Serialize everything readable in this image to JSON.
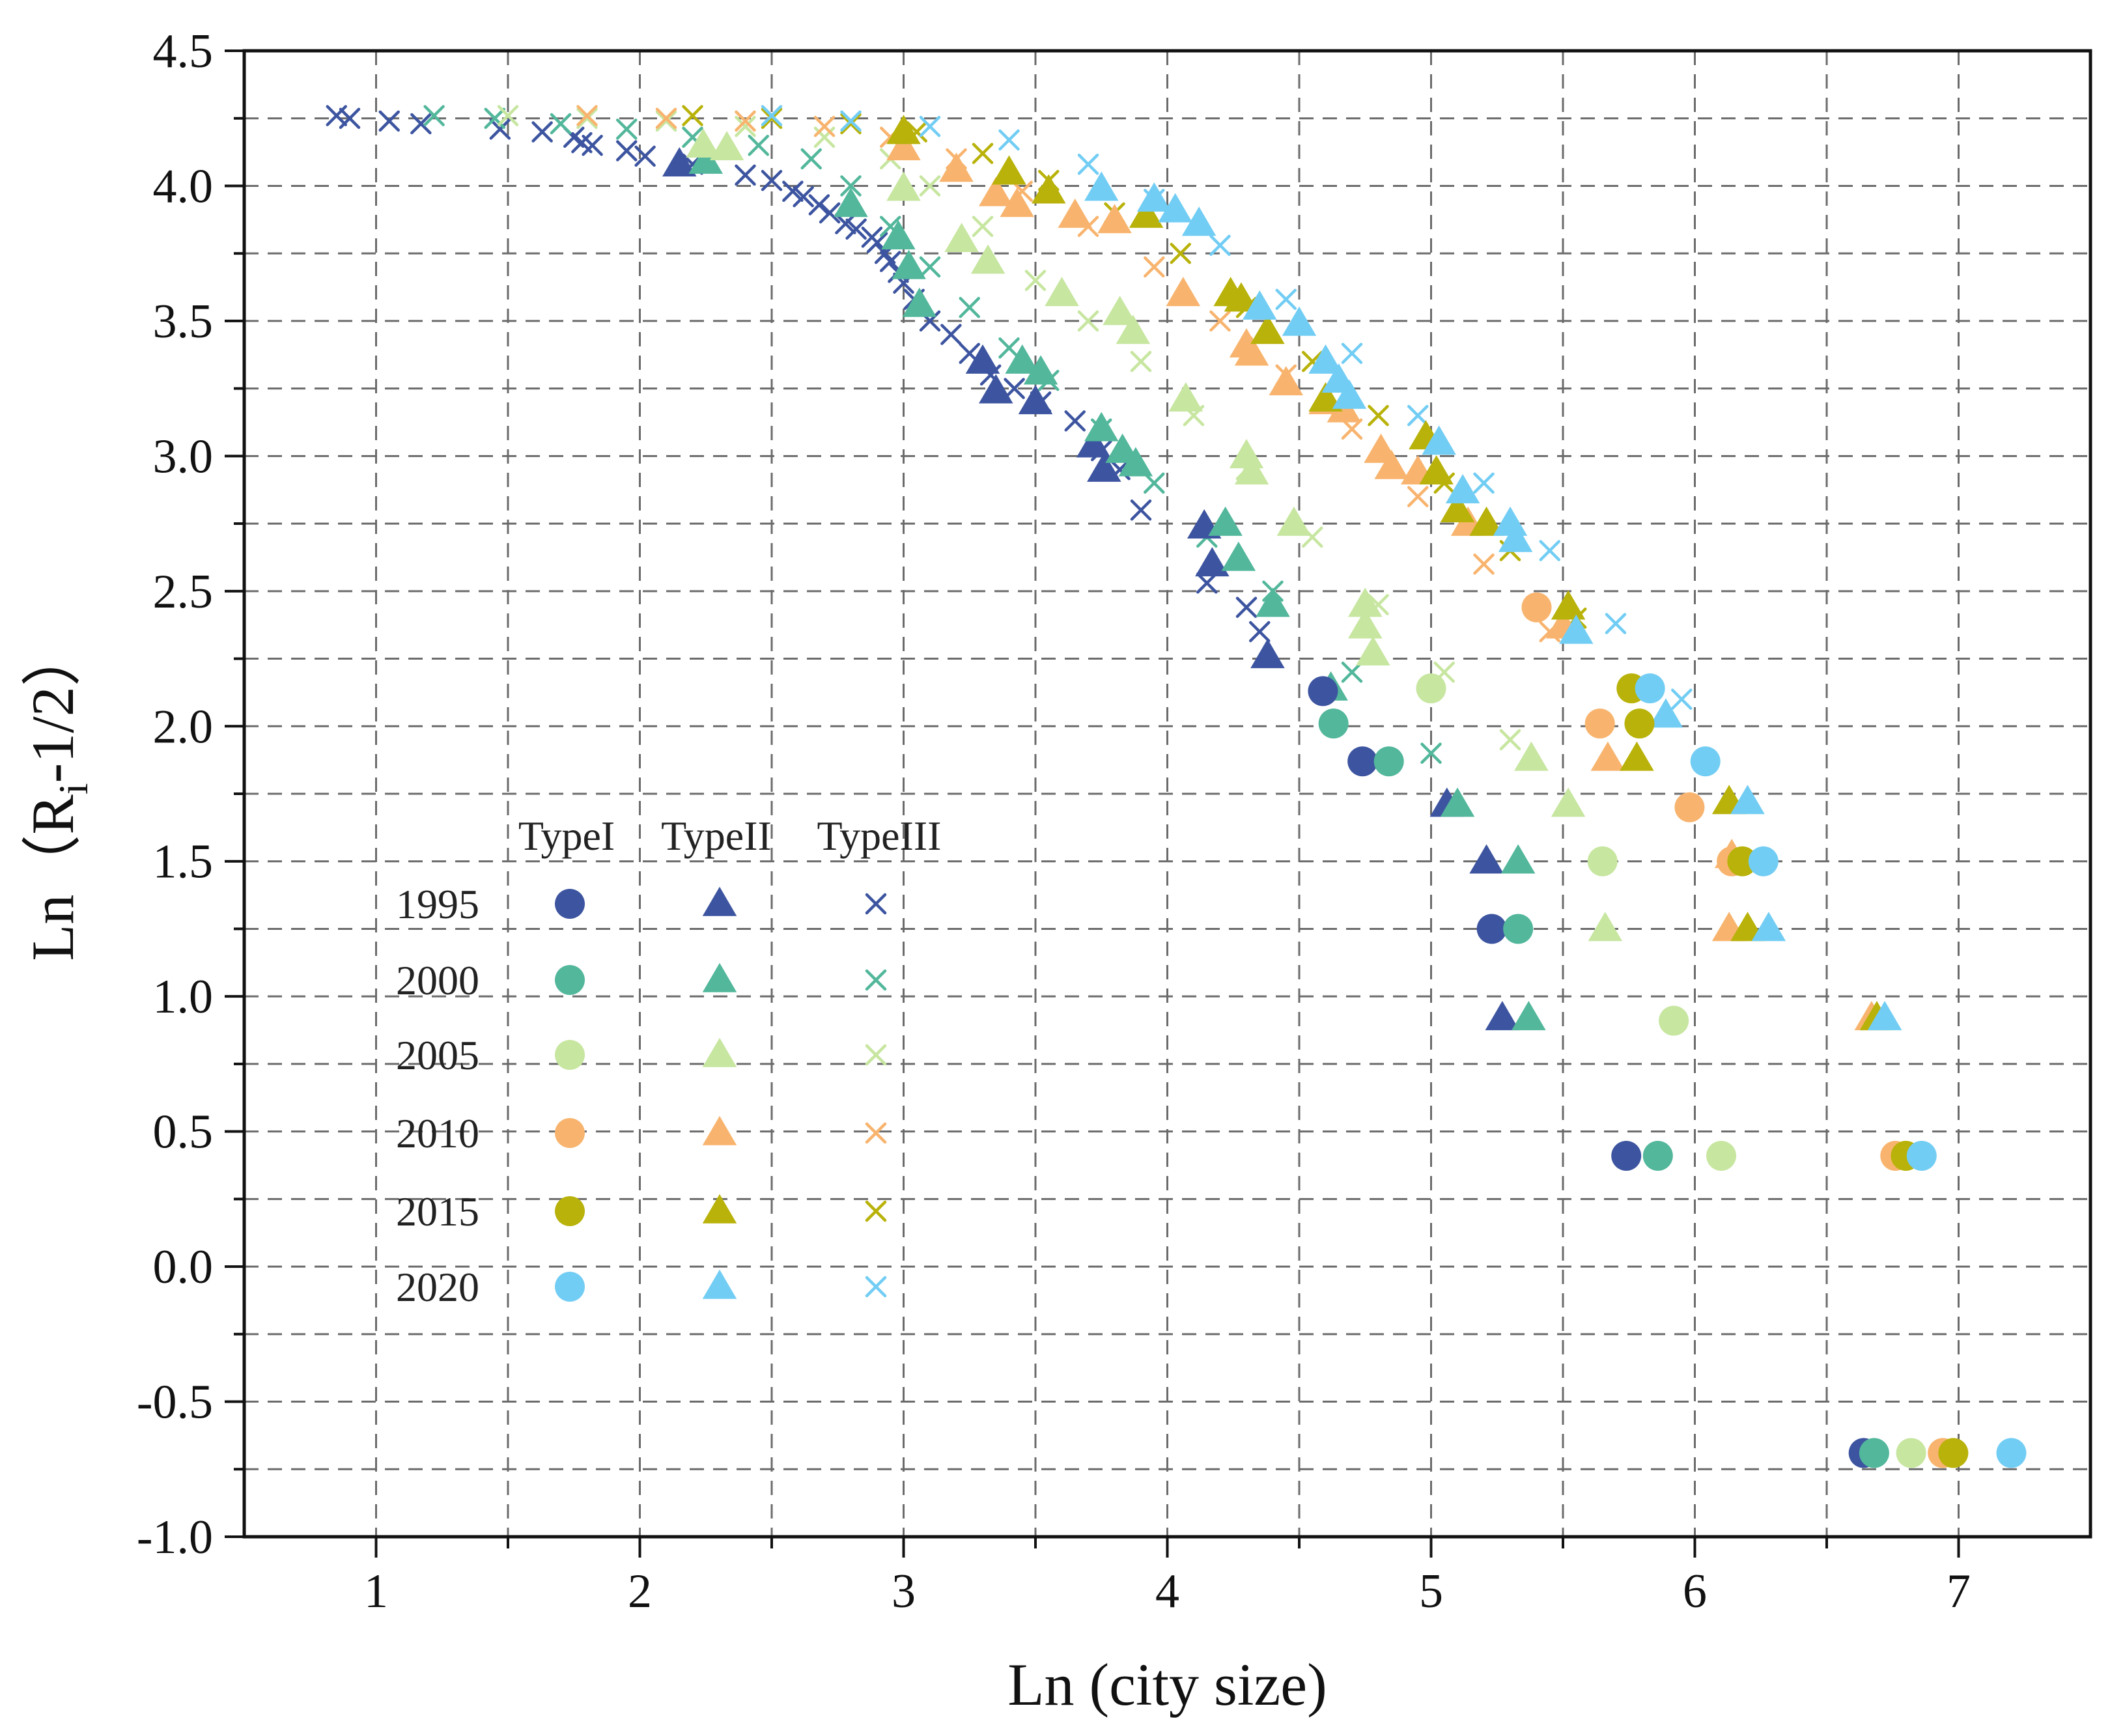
{
  "chart_data": {
    "type": "scatter",
    "title": "",
    "xlabel": "Ln (city size)",
    "ylabel": {
      "prefix": "Ln（R",
      "sub": "i",
      "suffix": "-1/2）"
    },
    "xlim": [
      0.5,
      7.5
    ],
    "ylim": [
      -1.0,
      4.5
    ],
    "xticks": [
      1,
      2,
      3,
      4,
      5,
      6,
      7
    ],
    "yticks": [
      -1.0,
      -0.5,
      0.0,
      0.5,
      1.0,
      1.5,
      2.0,
      2.5,
      3.0,
      3.5,
      4.0,
      4.5
    ],
    "ytick_labels": [
      "-1.0",
      "-0.5",
      "0.0",
      "0.5",
      "1.0",
      "1.5",
      "2.0",
      "2.5",
      "3.0",
      "3.5",
      "4.0",
      "4.5"
    ],
    "grid": true,
    "years": [
      "1995",
      "2000",
      "2005",
      "2010",
      "2015",
      "2020"
    ],
    "year_colors": {
      "1995": "#3d55a0",
      "2000": "#52b79b",
      "2005": "#c7e6a0",
      "2010": "#f8b46e",
      "2015": "#b8b20a",
      "2020": "#72cdf4"
    },
    "types": [
      {
        "name": "TypeI",
        "marker": "circle"
      },
      {
        "name": "TypeII",
        "marker": "triangle"
      },
      {
        "name": "TypeIII",
        "marker": "cross"
      }
    ],
    "legend_position": "center-left",
    "series": [
      {
        "name": "1995 TypeI",
        "year": "1995",
        "type": "TypeI",
        "points": [
          [
            4.59,
            2.13
          ],
          [
            4.74,
            1.87
          ],
          [
            5.23,
            1.25
          ],
          [
            5.74,
            0.41
          ],
          [
            6.64,
            -0.69
          ]
        ]
      },
      {
        "name": "2000 TypeI",
        "year": "2000",
        "type": "TypeI",
        "points": [
          [
            4.63,
            2.01
          ],
          [
            4.84,
            1.87
          ],
          [
            5.33,
            1.25
          ],
          [
            5.86,
            0.41
          ],
          [
            6.68,
            -0.69
          ]
        ]
      },
      {
        "name": "2005 TypeI",
        "year": "2005",
        "type": "TypeI",
        "points": [
          [
            5.0,
            2.14
          ],
          [
            5.65,
            1.5
          ],
          [
            5.92,
            0.91
          ],
          [
            6.1,
            0.41
          ],
          [
            6.82,
            -0.69
          ]
        ]
      },
      {
        "name": "2010 TypeI",
        "year": "2010",
        "type": "TypeI",
        "points": [
          [
            5.4,
            2.44
          ],
          [
            5.64,
            2.01
          ],
          [
            5.98,
            1.7
          ],
          [
            6.14,
            1.5
          ],
          [
            6.76,
            0.41
          ],
          [
            6.94,
            -0.69
          ]
        ]
      },
      {
        "name": "2015 TypeI",
        "year": "2015",
        "type": "TypeI",
        "points": [
          [
            5.76,
            2.14
          ],
          [
            5.79,
            2.01
          ],
          [
            6.18,
            1.5
          ],
          [
            6.8,
            0.41
          ],
          [
            6.98,
            -0.69
          ]
        ]
      },
      {
        "name": "2020 TypeI",
        "year": "2020",
        "type": "TypeI",
        "points": [
          [
            5.83,
            2.14
          ],
          [
            6.04,
            1.87
          ],
          [
            6.26,
            1.5
          ],
          [
            6.86,
            0.41
          ],
          [
            7.2,
            -0.69
          ]
        ]
      },
      {
        "name": "1995 TypeII",
        "year": "1995",
        "type": "TypeII",
        "points": [
          [
            2.15,
            4.08
          ],
          [
            3.3,
            3.35
          ],
          [
            3.35,
            3.24
          ],
          [
            3.5,
            3.2
          ],
          [
            3.72,
            3.04
          ],
          [
            3.76,
            2.95
          ],
          [
            4.14,
            2.74
          ],
          [
            4.17,
            2.6
          ],
          [
            4.38,
            2.26
          ],
          [
            5.06,
            1.71
          ],
          [
            5.21,
            1.5
          ],
          [
            5.27,
            0.92
          ]
        ]
      },
      {
        "name": "2000 TypeII",
        "year": "2000",
        "type": "TypeII",
        "points": [
          [
            2.25,
            4.09
          ],
          [
            2.8,
            3.93
          ],
          [
            2.98,
            3.81
          ],
          [
            3.02,
            3.7
          ],
          [
            3.06,
            3.56
          ],
          [
            3.45,
            3.35
          ],
          [
            3.52,
            3.31
          ],
          [
            3.75,
            3.1
          ],
          [
            3.83,
            3.02
          ],
          [
            3.88,
            2.97
          ],
          [
            4.22,
            2.75
          ],
          [
            4.27,
            2.62
          ],
          [
            4.4,
            2.45
          ],
          [
            4.62,
            2.14
          ],
          [
            5.1,
            1.71
          ],
          [
            5.33,
            1.5
          ],
          [
            5.37,
            0.92
          ]
        ]
      },
      {
        "name": "2005 TypeII",
        "year": "2005",
        "type": "TypeII",
        "points": [
          [
            2.24,
            4.15
          ],
          [
            2.33,
            4.14
          ],
          [
            3.0,
            3.99
          ],
          [
            3.22,
            3.8
          ],
          [
            3.32,
            3.72
          ],
          [
            3.6,
            3.6
          ],
          [
            3.82,
            3.53
          ],
          [
            3.87,
            3.46
          ],
          [
            4.07,
            3.21
          ],
          [
            4.3,
            3.0
          ],
          [
            4.32,
            2.94
          ],
          [
            4.48,
            2.75
          ],
          [
            4.75,
            2.45
          ],
          [
            4.75,
            2.37
          ],
          [
            4.78,
            2.27
          ],
          [
            5.38,
            1.88
          ],
          [
            5.52,
            1.71
          ],
          [
            5.66,
            1.25
          ]
        ]
      },
      {
        "name": "2010 TypeII",
        "year": "2010",
        "type": "TypeII",
        "points": [
          [
            3.0,
            4.14
          ],
          [
            3.2,
            4.06
          ],
          [
            3.35,
            3.97
          ],
          [
            3.43,
            3.93
          ],
          [
            3.65,
            3.89
          ],
          [
            3.8,
            3.87
          ],
          [
            4.06,
            3.6
          ],
          [
            4.3,
            3.41
          ],
          [
            4.32,
            3.38
          ],
          [
            4.45,
            3.27
          ],
          [
            4.6,
            3.2
          ],
          [
            4.67,
            3.17
          ],
          [
            4.81,
            3.02
          ],
          [
            4.85,
            2.96
          ],
          [
            4.95,
            2.94
          ],
          [
            5.14,
            2.75
          ],
          [
            5.5,
            2.37
          ],
          [
            5.67,
            1.88
          ],
          [
            6.14,
            1.52
          ],
          [
            6.13,
            1.25
          ],
          [
            6.67,
            0.92
          ]
        ]
      },
      {
        "name": "2015 TypeII",
        "year": "2015",
        "type": "TypeII",
        "points": [
          [
            3.0,
            4.2
          ],
          [
            3.4,
            4.05
          ],
          [
            3.55,
            3.98
          ],
          [
            3.92,
            3.89
          ],
          [
            4.24,
            3.6
          ],
          [
            4.28,
            3.58
          ],
          [
            4.38,
            3.46
          ],
          [
            4.6,
            3.21
          ],
          [
            4.98,
            3.07
          ],
          [
            5.02,
            2.94
          ],
          [
            5.1,
            2.8
          ],
          [
            5.21,
            2.75
          ],
          [
            5.52,
            2.44
          ],
          [
            5.78,
            1.88
          ],
          [
            6.13,
            1.72
          ],
          [
            6.2,
            1.25
          ],
          [
            6.69,
            0.92
          ]
        ]
      },
      {
        "name": "2020 TypeII",
        "year": "2020",
        "type": "TypeII",
        "points": [
          [
            3.75,
            3.99
          ],
          [
            3.95,
            3.95
          ],
          [
            4.03,
            3.91
          ],
          [
            4.12,
            3.86
          ],
          [
            4.35,
            3.55
          ],
          [
            4.5,
            3.49
          ],
          [
            4.6,
            3.35
          ],
          [
            4.65,
            3.28
          ],
          [
            4.69,
            3.22
          ],
          [
            5.03,
            3.05
          ],
          [
            5.12,
            2.87
          ],
          [
            5.3,
            2.75
          ],
          [
            5.32,
            2.69
          ],
          [
            5.55,
            2.35
          ],
          [
            5.89,
            2.04
          ],
          [
            6.2,
            1.72
          ],
          [
            6.28,
            1.25
          ],
          [
            6.72,
            0.92
          ]
        ]
      },
      {
        "name": "1995 TypeIII",
        "year": "1995",
        "type": "TypeIII",
        "points": [
          [
            0.85,
            4.26
          ],
          [
            0.9,
            4.25
          ],
          [
            1.05,
            4.24
          ],
          [
            1.17,
            4.23
          ],
          [
            1.47,
            4.21
          ],
          [
            1.63,
            4.2
          ],
          [
            1.75,
            4.18
          ],
          [
            1.78,
            4.16
          ],
          [
            1.82,
            4.15
          ],
          [
            1.95,
            4.13
          ],
          [
            2.02,
            4.11
          ],
          [
            2.2,
            4.08
          ],
          [
            2.4,
            4.04
          ],
          [
            2.5,
            4.02
          ],
          [
            2.58,
            3.98
          ],
          [
            2.62,
            3.96
          ],
          [
            2.68,
            3.93
          ],
          [
            2.72,
            3.9
          ],
          [
            2.78,
            3.86
          ],
          [
            2.82,
            3.84
          ],
          [
            2.88,
            3.81
          ],
          [
            2.9,
            3.79
          ],
          [
            2.93,
            3.75
          ],
          [
            2.95,
            3.72
          ],
          [
            2.98,
            3.68
          ],
          [
            3.0,
            3.64
          ],
          [
            3.04,
            3.58
          ],
          [
            3.1,
            3.5
          ],
          [
            3.18,
            3.45
          ],
          [
            3.25,
            3.38
          ],
          [
            3.33,
            3.3
          ],
          [
            3.42,
            3.25
          ],
          [
            3.52,
            3.2
          ],
          [
            3.65,
            3.13
          ],
          [
            3.75,
            3.02
          ],
          [
            3.82,
            2.95
          ],
          [
            3.9,
            2.8
          ],
          [
            4.15,
            2.53
          ],
          [
            4.3,
            2.44
          ],
          [
            4.35,
            2.35
          ]
        ]
      },
      {
        "name": "2000 TypeIII",
        "year": "2000",
        "type": "TypeIII",
        "points": [
          [
            1.22,
            4.26
          ],
          [
            1.45,
            4.25
          ],
          [
            1.7,
            4.23
          ],
          [
            1.95,
            4.21
          ],
          [
            2.2,
            4.18
          ],
          [
            2.45,
            4.15
          ],
          [
            2.65,
            4.1
          ],
          [
            2.8,
            4.0
          ],
          [
            2.95,
            3.85
          ],
          [
            3.1,
            3.7
          ],
          [
            3.25,
            3.55
          ],
          [
            3.4,
            3.4
          ],
          [
            3.55,
            3.28
          ],
          [
            3.75,
            3.1
          ],
          [
            3.95,
            2.9
          ],
          [
            4.15,
            2.7
          ],
          [
            4.4,
            2.5
          ],
          [
            4.7,
            2.2
          ],
          [
            5.0,
            1.9
          ]
        ]
      },
      {
        "name": "2005 TypeIII",
        "year": "2005",
        "type": "TypeIII",
        "points": [
          [
            1.5,
            4.26
          ],
          [
            1.8,
            4.25
          ],
          [
            2.1,
            4.24
          ],
          [
            2.4,
            4.22
          ],
          [
            2.7,
            4.18
          ],
          [
            2.95,
            4.1
          ],
          [
            3.1,
            4.0
          ],
          [
            3.3,
            3.85
          ],
          [
            3.5,
            3.65
          ],
          [
            3.7,
            3.5
          ],
          [
            3.9,
            3.35
          ],
          [
            4.1,
            3.15
          ],
          [
            4.3,
            2.95
          ],
          [
            4.55,
            2.7
          ],
          [
            4.8,
            2.45
          ],
          [
            5.05,
            2.2
          ],
          [
            5.3,
            1.95
          ]
        ]
      },
      {
        "name": "2010 TypeIII",
        "year": "2010",
        "type": "TypeIII",
        "points": [
          [
            1.8,
            4.26
          ],
          [
            2.1,
            4.25
          ],
          [
            2.4,
            4.24
          ],
          [
            2.7,
            4.22
          ],
          [
            2.95,
            4.18
          ],
          [
            3.2,
            4.1
          ],
          [
            3.45,
            3.98
          ],
          [
            3.7,
            3.85
          ],
          [
            3.95,
            3.7
          ],
          [
            4.2,
            3.5
          ],
          [
            4.45,
            3.3
          ],
          [
            4.7,
            3.1
          ],
          [
            4.95,
            2.85
          ],
          [
            5.2,
            2.6
          ],
          [
            5.45,
            2.35
          ]
        ]
      },
      {
        "name": "2015 TypeIII",
        "year": "2015",
        "type": "TypeIII",
        "points": [
          [
            2.2,
            4.26
          ],
          [
            2.5,
            4.25
          ],
          [
            2.8,
            4.23
          ],
          [
            3.05,
            4.2
          ],
          [
            3.3,
            4.12
          ],
          [
            3.55,
            4.02
          ],
          [
            3.8,
            3.9
          ],
          [
            4.05,
            3.75
          ],
          [
            4.3,
            3.55
          ],
          [
            4.55,
            3.35
          ],
          [
            4.8,
            3.15
          ],
          [
            5.05,
            2.9
          ],
          [
            5.3,
            2.65
          ],
          [
            5.55,
            2.4
          ],
          [
            5.8,
            2.15
          ]
        ]
      },
      {
        "name": "2020 TypeIII",
        "year": "2020",
        "type": "TypeIII",
        "points": [
          [
            2.5,
            4.26
          ],
          [
            2.8,
            4.24
          ],
          [
            3.1,
            4.22
          ],
          [
            3.4,
            4.17
          ],
          [
            3.7,
            4.08
          ],
          [
            3.95,
            3.95
          ],
          [
            4.2,
            3.78
          ],
          [
            4.45,
            3.58
          ],
          [
            4.7,
            3.38
          ],
          [
            4.95,
            3.15
          ],
          [
            5.2,
            2.9
          ],
          [
            5.45,
            2.65
          ],
          [
            5.7,
            2.38
          ],
          [
            5.95,
            2.1
          ]
        ]
      }
    ]
  }
}
